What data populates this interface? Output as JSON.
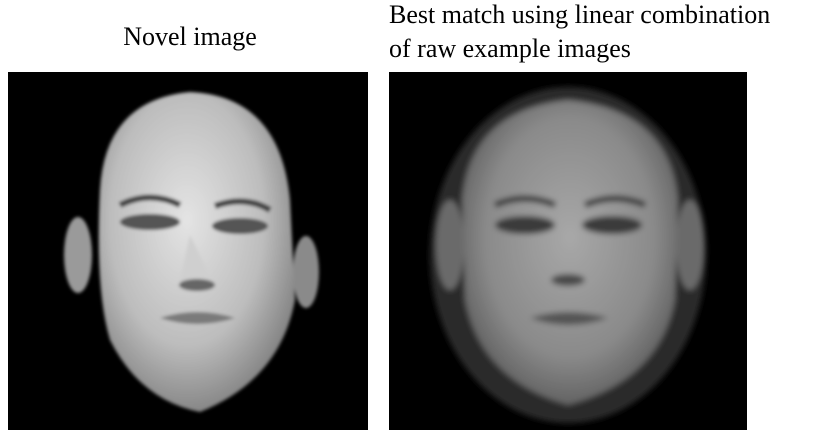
{
  "panels": [
    {
      "caption_lines": [
        "Novel image"
      ]
    },
    {
      "caption_lines": [
        "Best match using linear combination",
        "of raw example images"
      ]
    }
  ]
}
